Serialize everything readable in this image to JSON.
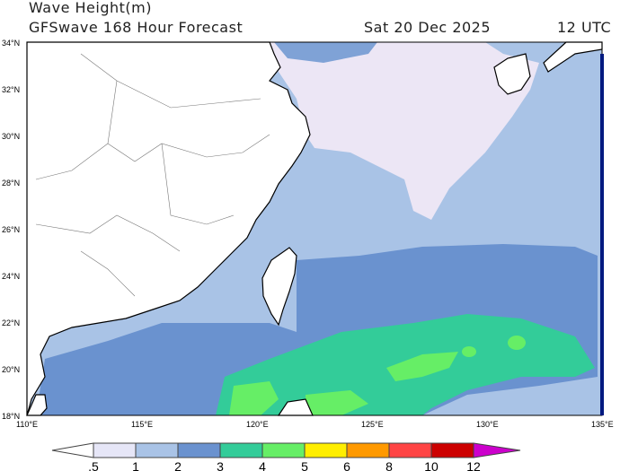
{
  "header": {
    "title": "Wave Height(m)",
    "subtitle": "GFSwave 168 Hour Forecast",
    "date": "Sat 20 Dec 2025",
    "time": "12 UTC"
  },
  "map": {
    "lon_range": [
      110,
      135
    ],
    "lat_range": [
      18,
      34
    ],
    "lat_labels": [
      "34°N",
      "32°N",
      "30°N",
      "28°N",
      "26°N",
      "24°N",
      "22°N",
      "20°N",
      "18°N"
    ],
    "lon_labels": [
      "110°E",
      "115°E",
      "120°E",
      "125°E",
      "130°E",
      "135°E"
    ]
  },
  "colorbar": {
    "labels": [
      ".5",
      "1",
      "2",
      "3",
      "4",
      "5",
      "6",
      "8",
      "10",
      "12"
    ],
    "colors": [
      "#ffffff",
      "#e6e6f7",
      "#a9c3e6",
      "#6a92cf",
      "#33cc99",
      "#66ee66",
      "#ffee00",
      "#ff9900",
      "#ff4444",
      "#cc0000",
      "#cc00cc"
    ]
  }
}
